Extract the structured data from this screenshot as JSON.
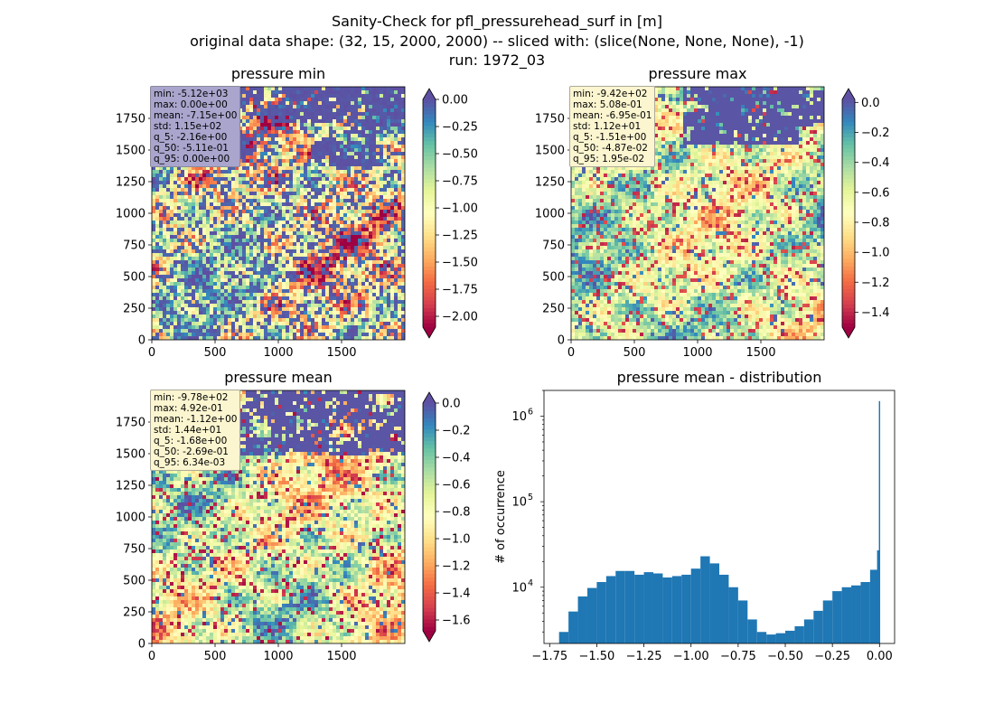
{
  "figure": {
    "title_lines": [
      "Sanity-Check for pfl_pressurehead_surf in [m]",
      "original data shape: (32, 15, 2000, 2000) -- sliced with: (slice(None, None, None), -1)",
      "run: 1972_03"
    ]
  },
  "colors": {
    "histogram_bar": "#1f77b4",
    "spectral": [
      "#9e0142",
      "#d53e4f",
      "#f46d43",
      "#fdae61",
      "#fee08b",
      "#ffffbf",
      "#e6f598",
      "#abdda4",
      "#66c2a5",
      "#3288bd",
      "#5e4fa2"
    ]
  },
  "panels": [
    {
      "key": "min",
      "title": "pressure min",
      "x_ticks": [
        "0",
        "500",
        "1000",
        "1500"
      ],
      "y_ticks": [
        "0",
        "250",
        "500",
        "750",
        "1000",
        "1250",
        "1500",
        "1750"
      ],
      "colorbar": {
        "vmin": -2.1,
        "vmax": 0.0,
        "extend": "both",
        "ticks": [
          0.0,
          -0.25,
          -0.5,
          -0.75,
          -1.0,
          -1.25,
          -1.5,
          -1.75,
          -2.0
        ],
        "tick_labels": [
          "0.00",
          "−0.25",
          "−0.50",
          "−0.75",
          "−1.00",
          "−1.25",
          "−1.50",
          "−1.75",
          "−2.00"
        ]
      },
      "stats": [
        "min: -5.12e+03",
        "max: 0.00e+00",
        "mean: -7.15e+00",
        "std: 1.15e+02",
        "q_5: -2.16e+00",
        "q_50: -5.11e-01",
        "q_95: 0.00e+00"
      ],
      "stats_box_color": "#a9a5cd"
    },
    {
      "key": "max",
      "title": "pressure max",
      "x_ticks": [
        "0",
        "500",
        "1000",
        "1500"
      ],
      "y_ticks": [
        "0",
        "250",
        "500",
        "750",
        "1000",
        "1250",
        "1500",
        "1750"
      ],
      "colorbar": {
        "vmin": -1.5,
        "vmax": 0.02,
        "extend": "both",
        "ticks": [
          0.0,
          -0.2,
          -0.4,
          -0.6,
          -0.8,
          -1.0,
          -1.2,
          -1.4
        ],
        "tick_labels": [
          "0.0",
          "−0.2",
          "−0.4",
          "−0.6",
          "−0.8",
          "−1.0",
          "−1.2",
          "−1.4"
        ]
      },
      "stats": [
        "min: -9.42e+02",
        "max: 5.08e-01",
        "mean: -6.95e-01",
        "std: 1.12e+01",
        "q_5: -1.51e+00",
        "q_50: -4.87e-02",
        "q_95: 1.95e-02"
      ],
      "stats_box_color": "#fbf5d0"
    },
    {
      "key": "mean",
      "title": "pressure mean",
      "x_ticks": [
        "0",
        "500",
        "1000",
        "1500"
      ],
      "y_ticks": [
        "0",
        "250",
        "500",
        "750",
        "1000",
        "1250",
        "1500",
        "1750"
      ],
      "colorbar": {
        "vmin": -1.68,
        "vmax": 0.0,
        "extend": "both",
        "ticks": [
          0.0,
          -0.2,
          -0.4,
          -0.6,
          -0.8,
          -1.0,
          -1.2,
          -1.4,
          -1.6
        ],
        "tick_labels": [
          "0.0",
          "−0.2",
          "−0.4",
          "−0.6",
          "−0.8",
          "−1.0",
          "−1.2",
          "−1.4",
          "−1.6"
        ]
      },
      "stats": [
        "min: -9.78e+02",
        "max: 4.92e-01",
        "mean: -1.12e+00",
        "std: 1.44e+01",
        "q_5: -1.68e+00",
        "q_50: -2.69e-01",
        "q_95: 6.34e-03"
      ],
      "stats_box_color": "#fbf5d0"
    }
  ],
  "chart_data": [
    {
      "type": "heatmap",
      "title": "pressure min",
      "xlim": [
        0,
        2000
      ],
      "ylim": [
        0,
        2000
      ],
      "x_ticks": [
        0,
        500,
        1000,
        1500
      ],
      "y_ticks": [
        0,
        250,
        500,
        750,
        1000,
        1250,
        1500,
        1750
      ],
      "colormap": "Spectral",
      "colorbar_range": [
        -2.1,
        0.0
      ]
    },
    {
      "type": "heatmap",
      "title": "pressure max",
      "xlim": [
        0,
        2000
      ],
      "ylim": [
        0,
        2000
      ],
      "x_ticks": [
        0,
        500,
        1000,
        1500
      ],
      "y_ticks": [
        0,
        250,
        500,
        750,
        1000,
        1250,
        1500,
        1750
      ],
      "colormap": "Spectral",
      "colorbar_range": [
        -1.5,
        0.02
      ]
    },
    {
      "type": "heatmap",
      "title": "pressure mean",
      "xlim": [
        0,
        2000
      ],
      "ylim": [
        0,
        2000
      ],
      "x_ticks": [
        0,
        500,
        1000,
        1500
      ],
      "y_ticks": [
        0,
        250,
        500,
        750,
        1000,
        1250,
        1500,
        1750
      ],
      "colormap": "Spectral",
      "colorbar_range": [
        -1.68,
        0.0
      ]
    },
    {
      "type": "bar",
      "title": "pressure mean - distribution",
      "ylabel": "# of occurrence",
      "y_scale": "log",
      "xlim": [
        -1.78,
        0.08
      ],
      "ylim": [
        2200,
        2000000
      ],
      "x_ticks": [
        -1.75,
        -1.5,
        -1.25,
        -1.0,
        -0.75,
        -0.5,
        -0.25,
        0.0
      ],
      "x_tick_labels": [
        "−1.75",
        "−1.50",
        "−1.25",
        "−1.00",
        "−0.75",
        "−0.50",
        "−0.25",
        "0.00"
      ],
      "y_ticks": [
        10000,
        100000,
        1000000
      ],
      "y_tick_labels": [
        "10^4",
        "10^5",
        "10^6"
      ],
      "bins": {
        "x": [
          -1.675,
          -1.625,
          -1.575,
          -1.525,
          -1.475,
          -1.425,
          -1.375,
          -1.325,
          -1.275,
          -1.225,
          -1.175,
          -1.125,
          -1.075,
          -1.025,
          -0.975,
          -0.925,
          -0.875,
          -0.825,
          -0.775,
          -0.725,
          -0.675,
          -0.625,
          -0.575,
          -0.525,
          -0.475,
          -0.425,
          -0.375,
          -0.325,
          -0.275,
          -0.225,
          -0.175,
          -0.125,
          -0.075,
          -0.025,
          -0.005,
          0.0
        ],
        "y": [
          3000,
          5200,
          7800,
          9800,
          11500,
          13500,
          15500,
          15500,
          14000,
          15000,
          14500,
          13000,
          13500,
          14000,
          16500,
          23000,
          19000,
          14000,
          10000,
          7000,
          4200,
          3000,
          2800,
          2900,
          3100,
          3500,
          4200,
          5300,
          7000,
          9000,
          10000,
          10500,
          11500,
          16000,
          27000,
          1500000
        ]
      }
    }
  ]
}
